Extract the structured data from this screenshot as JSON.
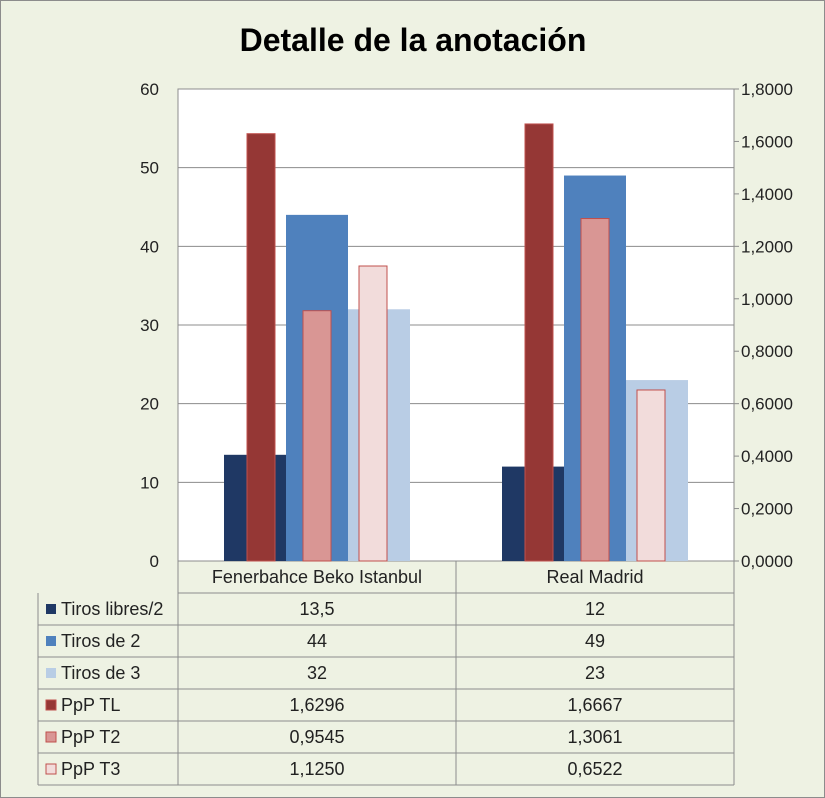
{
  "chart_data": {
    "type": "bar",
    "title": "Detalle de la anotación",
    "categories": [
      "Fenerbahce Beko Istanbul",
      "Real Madrid"
    ],
    "primary_axis": {
      "ylim": [
        0,
        60
      ],
      "ticks": [
        "0",
        "10",
        "20",
        "30",
        "40",
        "50",
        "60"
      ]
    },
    "secondary_axis": {
      "ylim": [
        0,
        1.8
      ],
      "ticks": [
        "0,0000",
        "0,2000",
        "0,4000",
        "0,6000",
        "0,8000",
        "1,0000",
        "1,2000",
        "1,4000",
        "1,6000",
        "1,8000"
      ]
    },
    "grid": true,
    "legend": "data-table",
    "series": [
      {
        "name": "Tiros libres/2",
        "axis": "primary",
        "color": "#1f3864",
        "values": [
          13.5,
          12
        ],
        "labels": [
          "13,5",
          "12"
        ]
      },
      {
        "name": "Tiros de 2",
        "axis": "primary",
        "color": "#4f81bd",
        "values": [
          44,
          49
        ],
        "labels": [
          "44",
          "49"
        ]
      },
      {
        "name": "Tiros de 3",
        "axis": "primary",
        "color": "#b9cde5",
        "values": [
          32,
          23
        ],
        "labels": [
          "32",
          "23"
        ]
      },
      {
        "name": "PpP TL",
        "axis": "secondary",
        "color": "#953735",
        "values": [
          1.6296,
          1.6667
        ],
        "labels": [
          "1,6296",
          "1,6667"
        ]
      },
      {
        "name": "PpP T2",
        "axis": "secondary",
        "color": "#d99694",
        "values": [
          0.9545,
          1.3061
        ],
        "labels": [
          "0,9545",
          "1,3061"
        ]
      },
      {
        "name": "PpP T3",
        "axis": "secondary",
        "color": "#f2dcdb",
        "values": [
          1.125,
          0.6522
        ],
        "labels": [
          "1,1250",
          "0,6522"
        ]
      }
    ]
  }
}
